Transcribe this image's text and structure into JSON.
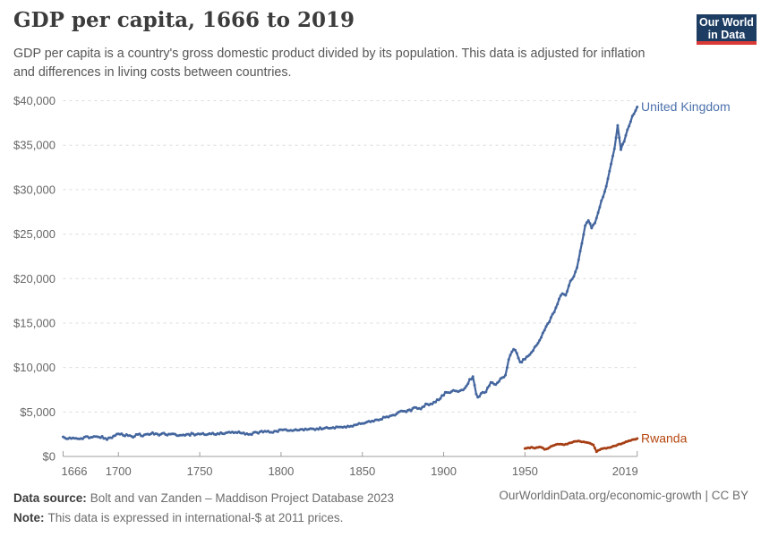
{
  "header": {
    "title": "GDP per capita, 1666 to 2019",
    "subtitle": "GDP per capita is a country's gross domestic product divided by its population. This data is adjusted for inflation and differences in living costs between countries."
  },
  "logo": {
    "line1": "Our World",
    "line2": "in Data",
    "bg_color": "#1d3d63",
    "bar_color": "#d93a35"
  },
  "chart_data": {
    "type": "line",
    "title": "GDP per capita, 1666 to 2019",
    "xlabel": "",
    "ylabel": "",
    "xlim": [
      1666,
      2019
    ],
    "ylim": [
      0,
      40000
    ],
    "x_ticks": [
      1666,
      1700,
      1750,
      1800,
      1850,
      1900,
      1950,
      2019
    ],
    "x_tick_labels": [
      "1666",
      "1700",
      "1750",
      "1800",
      "1850",
      "1900",
      "1950",
      "2019"
    ],
    "y_ticks": [
      0,
      5000,
      10000,
      15000,
      20000,
      25000,
      30000,
      35000,
      40000
    ],
    "y_tick_labels": [
      "$0",
      "$5,000",
      "$10,000",
      "$15,000",
      "$20,000",
      "$25,000",
      "$30,000",
      "$35,000",
      "$40,000"
    ],
    "grid": "horizontal-dashed",
    "legend": "end-of-line-labels",
    "series": [
      {
        "id": "united-kingdom",
        "name": "United Kingdom",
        "color": "#44669e",
        "label_color": "#4d72ad",
        "jitter": 120,
        "points": [
          [
            1666,
            2200
          ],
          [
            1669,
            1960
          ],
          [
            1672,
            2090
          ],
          [
            1675,
            1900
          ],
          [
            1678,
            2040
          ],
          [
            1681,
            2160
          ],
          [
            1684,
            2260
          ],
          [
            1687,
            2140
          ],
          [
            1690,
            2200
          ],
          [
            1693,
            2000
          ],
          [
            1696,
            2140
          ],
          [
            1700,
            2480
          ],
          [
            1703,
            2430
          ],
          [
            1706,
            2310
          ],
          [
            1709,
            2180
          ],
          [
            1712,
            2450
          ],
          [
            1715,
            2360
          ],
          [
            1718,
            2510
          ],
          [
            1721,
            2580
          ],
          [
            1724,
            2430
          ],
          [
            1727,
            2570
          ],
          [
            1730,
            2380
          ],
          [
            1733,
            2510
          ],
          [
            1736,
            2440
          ],
          [
            1739,
            2280
          ],
          [
            1742,
            2400
          ],
          [
            1745,
            2510
          ],
          [
            1748,
            2460
          ],
          [
            1751,
            2570
          ],
          [
            1754,
            2490
          ],
          [
            1757,
            2590
          ],
          [
            1760,
            2530
          ],
          [
            1763,
            2650
          ],
          [
            1766,
            2590
          ],
          [
            1769,
            2690
          ],
          [
            1772,
            2630
          ],
          [
            1775,
            2710
          ],
          [
            1778,
            2590
          ],
          [
            1781,
            2530
          ],
          [
            1784,
            2650
          ],
          [
            1787,
            2750
          ],
          [
            1790,
            2810
          ],
          [
            1793,
            2750
          ],
          [
            1796,
            2830
          ],
          [
            1799,
            2890
          ],
          [
            1802,
            2990
          ],
          [
            1805,
            2940
          ],
          [
            1808,
            3030
          ],
          [
            1811,
            2980
          ],
          [
            1814,
            3060
          ],
          [
            1817,
            3010
          ],
          [
            1820,
            3090
          ],
          [
            1823,
            3160
          ],
          [
            1826,
            3100
          ],
          [
            1829,
            3210
          ],
          [
            1832,
            3170
          ],
          [
            1835,
            3290
          ],
          [
            1838,
            3370
          ],
          [
            1841,
            3330
          ],
          [
            1844,
            3460
          ],
          [
            1847,
            3600
          ],
          [
            1850,
            3770
          ],
          [
            1853,
            3890
          ],
          [
            1856,
            4020
          ],
          [
            1859,
            4100
          ],
          [
            1862,
            4270
          ],
          [
            1865,
            4490
          ],
          [
            1868,
            4570
          ],
          [
            1871,
            4790
          ],
          [
            1874,
            5050
          ],
          [
            1877,
            5010
          ],
          [
            1880,
            5230
          ],
          [
            1883,
            5490
          ],
          [
            1886,
            5410
          ],
          [
            1889,
            5860
          ],
          [
            1892,
            5910
          ],
          [
            1895,
            6150
          ],
          [
            1898,
            6590
          ],
          [
            1901,
            7110
          ],
          [
            1904,
            7190
          ],
          [
            1907,
            7460
          ],
          [
            1910,
            7360
          ],
          [
            1913,
            7710
          ],
          [
            1916,
            8610
          ],
          [
            1918,
            9000
          ],
          [
            1920,
            6900
          ],
          [
            1921,
            6560
          ],
          [
            1923,
            7110
          ],
          [
            1926,
            7310
          ],
          [
            1929,
            8400
          ],
          [
            1932,
            8060
          ],
          [
            1935,
            8660
          ],
          [
            1938,
            9110
          ],
          [
            1940,
            10900
          ],
          [
            1943,
            12160
          ],
          [
            1945,
            11500
          ],
          [
            1947,
            10560
          ],
          [
            1950,
            10950
          ],
          [
            1953,
            11500
          ],
          [
            1956,
            12250
          ],
          [
            1959,
            13000
          ],
          [
            1962,
            14200
          ],
          [
            1965,
            15200
          ],
          [
            1968,
            16300
          ],
          [
            1971,
            17600
          ],
          [
            1973,
            18400
          ],
          [
            1975,
            18000
          ],
          [
            1978,
            19700
          ],
          [
            1980,
            20300
          ],
          [
            1982,
            21200
          ],
          [
            1984,
            23100
          ],
          [
            1987,
            25960
          ],
          [
            1989,
            26470
          ],
          [
            1991,
            25730
          ],
          [
            1993,
            26300
          ],
          [
            1996,
            28140
          ],
          [
            2000,
            30300
          ],
          [
            2003,
            32830
          ],
          [
            2005,
            34700
          ],
          [
            2007,
            37100
          ],
          [
            2009,
            34600
          ],
          [
            2011,
            35500
          ],
          [
            2014,
            37200
          ],
          [
            2016,
            38200
          ],
          [
            2019,
            39300
          ]
        ]
      },
      {
        "id": "rwanda",
        "name": "Rwanda",
        "color": "#a63e14",
        "label_color": "#b5470f",
        "jitter": 40,
        "points": [
          [
            1950,
            900
          ],
          [
            1952,
            960
          ],
          [
            1954,
            1010
          ],
          [
            1956,
            930
          ],
          [
            1958,
            990
          ],
          [
            1960,
            1070
          ],
          [
            1962,
            790
          ],
          [
            1964,
            910
          ],
          [
            1966,
            1160
          ],
          [
            1968,
            1290
          ],
          [
            1970,
            1360
          ],
          [
            1972,
            1420
          ],
          [
            1974,
            1300
          ],
          [
            1976,
            1410
          ],
          [
            1978,
            1530
          ],
          [
            1980,
            1650
          ],
          [
            1982,
            1740
          ],
          [
            1984,
            1700
          ],
          [
            1986,
            1630
          ],
          [
            1988,
            1570
          ],
          [
            1990,
            1490
          ],
          [
            1992,
            1330
          ],
          [
            1994,
            500
          ],
          [
            1995,
            700
          ],
          [
            1997,
            860
          ],
          [
            1999,
            910
          ],
          [
            2002,
            1010
          ],
          [
            2005,
            1160
          ],
          [
            2008,
            1360
          ],
          [
            2011,
            1560
          ],
          [
            2014,
            1760
          ],
          [
            2017,
            1910
          ],
          [
            2019,
            2010
          ]
        ]
      }
    ]
  },
  "footer": {
    "datasource_label": "Data source:",
    "datasource": "Bolt and van Zanden – Maddison Project Database 2023",
    "note_label": "Note:",
    "note": "This data is expressed in international-$ at 2011 prices.",
    "link": "OurWorldinData.org/economic-growth | CC BY"
  }
}
